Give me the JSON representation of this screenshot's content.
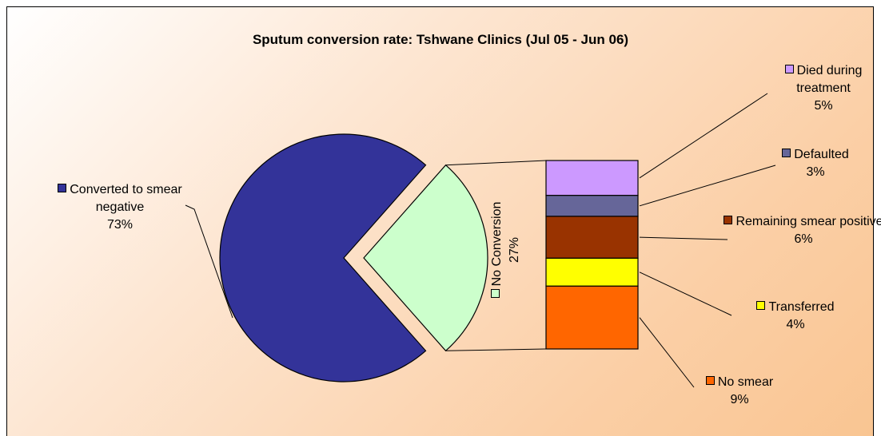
{
  "chart_data": {
    "type": "pie",
    "title": "Sputum conversion rate: Tshwane Clinics (Jul 05 - Jun 06)",
    "categories": [
      "Converted to smear negative",
      "No Conversion"
    ],
    "values": [
      73,
      27
    ],
    "value_labels": [
      "73%",
      "27%"
    ],
    "colors": [
      "#333399",
      "#ccffcc"
    ],
    "breakdown": {
      "categories": [
        "Died during treatment",
        "Defaulted",
        "Remaining smear positive",
        "Transferred",
        "No smear"
      ],
      "values": [
        5,
        3,
        6,
        4,
        9
      ],
      "value_labels": [
        "5%",
        "3%",
        "6%",
        "4%",
        "9%"
      ],
      "colors": [
        "#cc99ff",
        "#666699",
        "#993300",
        "#ffff00",
        "#ff6600"
      ]
    }
  }
}
